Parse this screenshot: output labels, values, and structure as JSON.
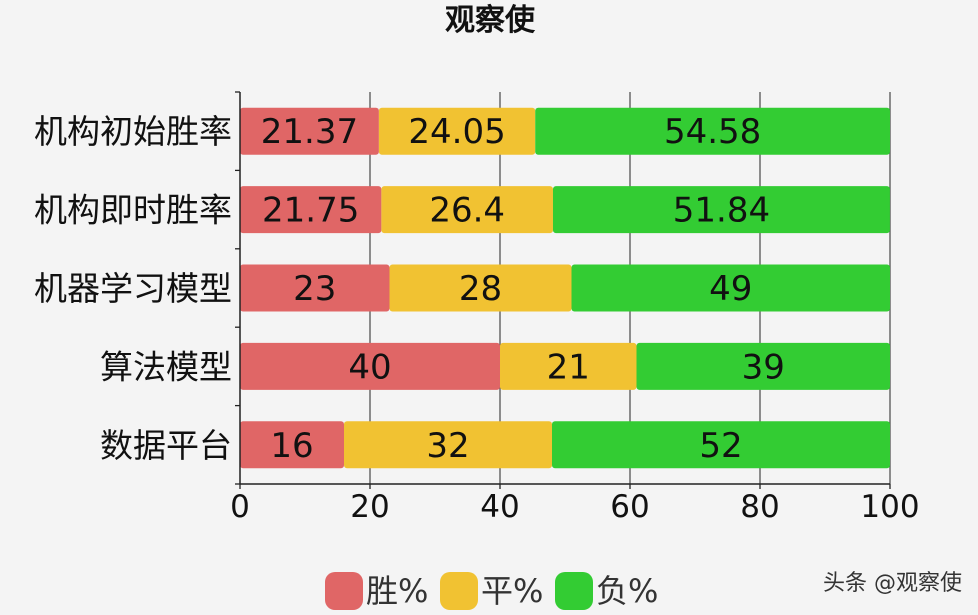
{
  "chart_data": {
    "type": "bar",
    "orientation": "horizontal",
    "stacked": true,
    "title": "观察使",
    "categories": [
      "机构初始胜率",
      "机构即时胜率",
      "机器学习模型",
      "算法模型",
      "数据平台"
    ],
    "series": [
      {
        "name": "胜%",
        "color": "#e06666",
        "values": [
          21.37,
          21.75,
          23,
          40,
          16
        ],
        "labels": [
          "21.37",
          "21.75",
          "23",
          "40",
          "16"
        ]
      },
      {
        "name": "平%",
        "color": "#f1c232",
        "values": [
          24.05,
          26.4,
          28,
          21,
          32
        ],
        "labels": [
          "24.05",
          "26.4",
          "28",
          "21",
          "32"
        ]
      },
      {
        "name": "负%",
        "color": "#33cc33",
        "values": [
          54.58,
          51.84,
          49,
          39,
          52
        ],
        "labels": [
          "54.58",
          "51.84",
          "49",
          "39",
          "52"
        ]
      }
    ],
    "xlim": [
      0,
      100
    ],
    "xticks": [
      0,
      20,
      40,
      60,
      80,
      100
    ],
    "grid": true,
    "legend_position": "bottom"
  },
  "watermark": "头条 @观察使"
}
